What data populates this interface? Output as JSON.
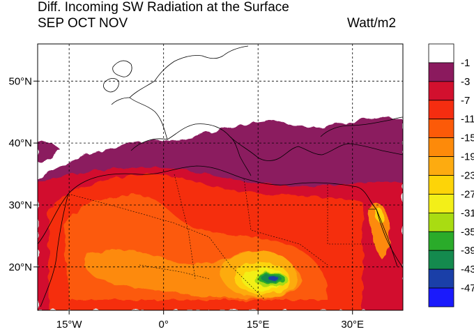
{
  "title": {
    "line1": "Diff. Incoming SW Radiation at the Surface",
    "line2": "SEP OCT NOV",
    "units": "Watt/m2"
  },
  "axes": {
    "lon_labels": [
      "15°W",
      "0°",
      "15°E",
      "30°E"
    ],
    "lat_labels": [
      "50°N",
      "40°N",
      "30°N",
      "20°N"
    ],
    "lon_values": [
      -15,
      0,
      15,
      30
    ],
    "lat_values": [
      50,
      40,
      30,
      20
    ],
    "lon_range": [
      -20,
      38
    ],
    "lat_range": [
      13,
      56
    ]
  },
  "legend": {
    "labels": [
      "-1",
      "-3",
      "-7",
      "-11",
      "-15",
      "-19",
      "-23",
      "-27",
      "-31",
      "-35",
      "-39",
      "-43",
      "-47"
    ],
    "colors": [
      "#ffffff",
      "#8b1a5e",
      "#d2102e",
      "#f52d10",
      "#fc5a08",
      "#fd8a0a",
      "#fdab10",
      "#fdd408",
      "#f3ef18",
      "#a9dc12",
      "#2aab2a",
      "#148a4e",
      "#1a3fa8",
      "#1a1afc"
    ]
  }
}
